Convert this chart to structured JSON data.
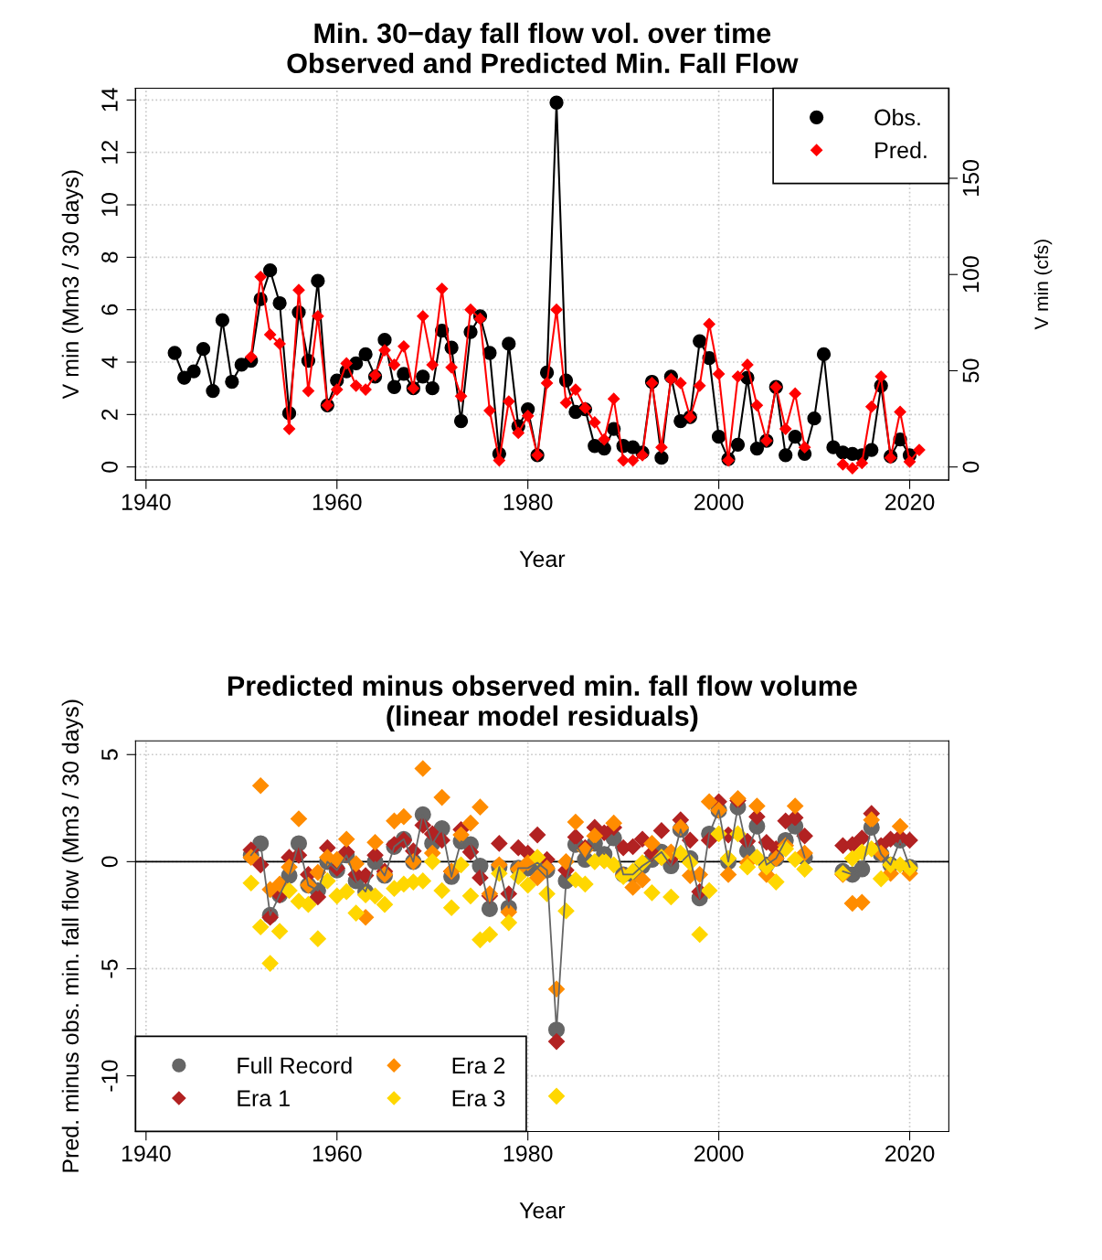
{
  "chart_data": [
    {
      "type": "line",
      "title": "Min. 30−day fall flow vol. over time\nObserved and Predicted Min. Fall Flow",
      "xlabel": "Year",
      "ylabel": "V min (Mm3 / 30 days)",
      "y2label": "V min (cfs)",
      "xlim": [
        1938.9,
        2024.1
      ],
      "xticks": [
        1940,
        1960,
        1980,
        2000,
        2020
      ],
      "ylim": [
        -0.5,
        14.45
      ],
      "yticks": [
        0,
        2,
        4,
        6,
        8,
        10,
        12,
        14
      ],
      "y2lim": [
        -6.8,
        196.8
      ],
      "y2ticks": [
        0,
        50,
        100,
        150
      ],
      "grid": true,
      "legend": "top right",
      "series": [
        {
          "name": "Obs.",
          "color": "#000000",
          "marker": "circle",
          "x": [
            1943,
            1944,
            1945,
            1946,
            1947,
            1948,
            1949,
            1950,
            1951,
            1952,
            1953,
            1954,
            1955,
            1956,
            1957,
            1958,
            1959,
            1960,
            1961,
            1962,
            1963,
            1964,
            1965,
            1966,
            1967,
            1968,
            1969,
            1970,
            1971,
            1972,
            1973,
            1974,
            1975,
            1976,
            1977,
            1978,
            1979,
            1980,
            1981,
            1982,
            1983,
            1984,
            1985,
            1986,
            1987,
            1988,
            1989,
            1990,
            1991,
            1992,
            1993,
            1994,
            1995,
            1996,
            1997,
            1998,
            1999,
            2000,
            2001,
            2002,
            2003,
            2004,
            2005,
            2006,
            2007,
            2008,
            2009,
            2010,
            2011,
            2012,
            2013,
            2014,
            2015,
            2016,
            2017,
            2018,
            2019,
            2020
          ],
          "values": [
            4.35,
            3.4,
            3.65,
            4.5,
            2.9,
            5.6,
            3.25,
            3.9,
            4.05,
            6.4,
            7.5,
            6.25,
            2.05,
            5.9,
            4.05,
            7.1,
            2.35,
            3.3,
            3.65,
            3.95,
            4.3,
            3.45,
            4.85,
            3.05,
            3.55,
            3.0,
            3.45,
            3.0,
            5.2,
            4.55,
            1.75,
            5.15,
            5.75,
            4.35,
            0.5,
            4.7,
            1.55,
            2.2,
            0.45,
            3.6,
            13.9,
            3.3,
            2.1,
            2.2,
            0.8,
            0.7,
            1.45,
            0.8,
            0.75,
            0.55,
            3.25,
            0.35,
            3.45,
            1.75,
            1.9,
            4.8,
            4.15,
            1.15,
            0.3,
            0.85,
            3.4,
            0.7,
            1.0,
            3.05,
            0.45,
            1.15,
            0.5,
            1.85,
            4.3,
            0.75,
            0.55,
            0.5,
            0.45,
            0.65,
            3.1,
            0.4,
            1.05,
            0.45
          ]
        },
        {
          "name": "Pred.",
          "color": "#ff0000",
          "marker": "diamond",
          "x": [
            1951,
            1952,
            1953,
            1954,
            1955,
            1956,
            1957,
            1958,
            1959,
            1960,
            1961,
            1962,
            1963,
            1964,
            1965,
            1966,
            1967,
            1968,
            1969,
            1970,
            1971,
            1972,
            1973,
            1974,
            1975,
            1976,
            1977,
            1978,
            1979,
            1980,
            1981,
            1982,
            1983,
            1984,
            1985,
            1986,
            1987,
            1988,
            1989,
            1990,
            1991,
            1992,
            1993,
            1994,
            1995,
            1996,
            1997,
            1998,
            1999,
            2000,
            2001,
            2002,
            2003,
            2004,
            2005,
            2006,
            2007,
            2008,
            2009,
            2010,
            2011,
            2012,
            2013,
            2014,
            2015,
            2016,
            2017,
            2018,
            2019,
            2020,
            2021
          ],
          "values": [
            4.2,
            7.25,
            5.05,
            4.7,
            1.45,
            6.75,
            2.9,
            5.75,
            2.35,
            2.95,
            3.95,
            3.1,
            2.95,
            3.5,
            4.45,
            3.9,
            4.6,
            3.0,
            5.75,
            3.9,
            6.8,
            3.8,
            2.7,
            6.0,
            5.65,
            2.15,
            0.25,
            2.5,
            1.3,
            1.95,
            0.45,
            3.2,
            6.0,
            2.45,
            2.95,
            2.25,
            1.7,
            1.05,
            2.6,
            0.25,
            0.25,
            0.45,
            3.2,
            0.75,
            3.35,
            3.2,
            1.9,
            3.1,
            5.45,
            3.55,
            0.25,
            3.45,
            3.9,
            2.35,
            1.0,
            3.05,
            1.45,
            2.8,
            0.75,
            null,
            null,
            null,
            0.1,
            -0.05,
            0.15,
            2.3,
            3.45,
            0.35,
            2.1,
            0.2,
            0.65
          ]
        }
      ]
    },
    {
      "type": "scatter",
      "title": "Predicted minus observed min. fall flow volume\n(linear model residuals)",
      "xlabel": "Year",
      "ylabel": "Pred. minus obs. min. fall flow (Mm3 / 30 days)",
      "xlim": [
        1938.9,
        2024.1
      ],
      "xticks": [
        1940,
        1960,
        1980,
        2000,
        2020
      ],
      "ylim": [
        -12.6,
        5.64
      ],
      "yticks": [
        -10,
        -5,
        0,
        5
      ],
      "grid": true,
      "legend": "bottom left",
      "ref_lines": [
        {
          "axis": "y",
          "value": 0,
          "color": "#000000",
          "line_style": "solid"
        }
      ],
      "x": [
        1951,
        1952,
        1953,
        1954,
        1955,
        1956,
        1957,
        1958,
        1959,
        1960,
        1961,
        1962,
        1963,
        1964,
        1965,
        1966,
        1967,
        1968,
        1969,
        1970,
        1971,
        1972,
        1973,
        1974,
        1975,
        1976,
        1977,
        1978,
        1979,
        1980,
        1981,
        1982,
        1983,
        1984,
        1985,
        1986,
        1987,
        1988,
        1989,
        1990,
        1991,
        1992,
        1993,
        1994,
        1995,
        1996,
        1997,
        1998,
        1999,
        2000,
        2001,
        2002,
        2003,
        2004,
        2005,
        2006,
        2007,
        2008,
        2009,
        2010,
        2011,
        2012,
        2013,
        2014,
        2015,
        2016,
        2017,
        2018,
        2019,
        2020
      ],
      "series": [
        {
          "name": "Full Record",
          "color": "#666666",
          "type": "line",
          "marker": "circle",
          "values": [
            0.3,
            0.85,
            -2.5,
            -1.55,
            -0.65,
            0.85,
            -1.1,
            -1.35,
            0.0,
            -0.4,
            0.3,
            -0.9,
            -1.4,
            0.0,
            -0.65,
            0.7,
            1.05,
            0.0,
            2.2,
            0.85,
            1.55,
            -0.7,
            0.95,
            0.8,
            -0.2,
            -2.2,
            -0.25,
            -2.15,
            -0.3,
            -0.3,
            -0.05,
            -0.4,
            -7.85,
            -0.9,
            0.8,
            0.1,
            0.85,
            0.35,
            1.1,
            -0.6,
            -0.6,
            -0.2,
            0.1,
            0.45,
            -0.2,
            1.5,
            0.15,
            -1.7,
            1.3,
            2.4,
            0.0,
            2.55,
            0.5,
            1.65,
            -0.15,
            0.15,
            1.0,
            1.65,
            0.2,
            null,
            null,
            null,
            -0.45,
            -0.6,
            -0.35,
            1.6,
            0.35,
            -0.15,
            1.0,
            -0.25
          ]
        },
        {
          "name": "Era 1",
          "color": "#b22222",
          "marker": "diamond",
          "values": [
            0.55,
            -0.15,
            -2.6,
            -1.55,
            0.2,
            0.3,
            -0.6,
            -1.65,
            0.65,
            -0.3,
            0.45,
            -0.6,
            -0.65,
            0.3,
            -0.45,
            0.8,
            1.0,
            0.5,
            1.7,
            1.3,
            1.0,
            -0.45,
            1.5,
            0.45,
            -0.75,
            -1.6,
            0.85,
            -1.5,
            0.65,
            0.4,
            1.25,
            0.1,
            -8.4,
            -0.4,
            1.15,
            0.65,
            1.6,
            1.35,
            1.6,
            0.65,
            0.7,
            1.05,
            0.4,
            1.45,
            0.15,
            1.95,
            1.0,
            -1.4,
            1.0,
            2.8,
            1.25,
            2.85,
            0.95,
            2.1,
            0.9,
            0.6,
            1.9,
            2.05,
            1.2,
            null,
            null,
            null,
            0.75,
            0.8,
            1.1,
            2.25,
            0.75,
            1.05,
            1.15,
            1.0
          ]
        },
        {
          "name": "Era 2",
          "color": "#ff8c00",
          "marker": "diamond",
          "values": [
            0.2,
            3.55,
            -1.3,
            -1.05,
            -0.25,
            2.0,
            -1.1,
            -0.5,
            0.2,
            0.1,
            1.05,
            -0.1,
            -2.6,
            0.9,
            -0.6,
            1.9,
            2.1,
            0.0,
            4.35,
            0.4,
            3.0,
            -0.45,
            1.25,
            1.8,
            2.55,
            -1.5,
            -0.15,
            -2.35,
            -0.35,
            -0.05,
            -0.75,
            -0.3,
            -5.95,
            0.0,
            1.85,
            0.55,
            1.2,
            0.05,
            1.8,
            -0.65,
            -1.2,
            -0.85,
            0.85,
            0.2,
            0.45,
            1.6,
            -0.65,
            -0.6,
            2.8,
            2.4,
            -0.6,
            2.95,
            -0.05,
            2.6,
            -0.6,
            0.15,
            0.75,
            2.6,
            0.4,
            null,
            null,
            null,
            -0.6,
            -1.95,
            -1.9,
            1.95,
            0.4,
            -0.55,
            1.65,
            -0.55
          ]
        },
        {
          "name": "Era 3",
          "color": "#ffd700",
          "marker": "diamond",
          "values": [
            -1.0,
            -3.05,
            -4.75,
            -3.25,
            -1.35,
            -1.85,
            -2.0,
            -3.6,
            -0.9,
            -1.6,
            -1.4,
            -2.4,
            -1.55,
            -1.6,
            -2.0,
            -1.25,
            -1.05,
            -0.95,
            -0.9,
            0.0,
            -1.35,
            -2.15,
            -0.15,
            -1.6,
            -3.65,
            -3.4,
            -0.55,
            -2.85,
            -0.7,
            -1.1,
            0.2,
            -1.5,
            -10.95,
            -2.3,
            -0.85,
            -1.05,
            0.0,
            0.05,
            -0.15,
            -0.7,
            -0.45,
            -0.05,
            -1.45,
            0.2,
            -1.65,
            0.4,
            -0.05,
            -3.4,
            -1.35,
            1.3,
            0.15,
            1.3,
            -0.25,
            0.2,
            -0.25,
            -0.95,
            0.6,
            0.1,
            -0.35,
            null,
            null,
            null,
            -0.55,
            0.15,
            0.45,
            0.6,
            -0.8,
            -0.15,
            -0.15,
            -0.3
          ]
        }
      ]
    }
  ]
}
